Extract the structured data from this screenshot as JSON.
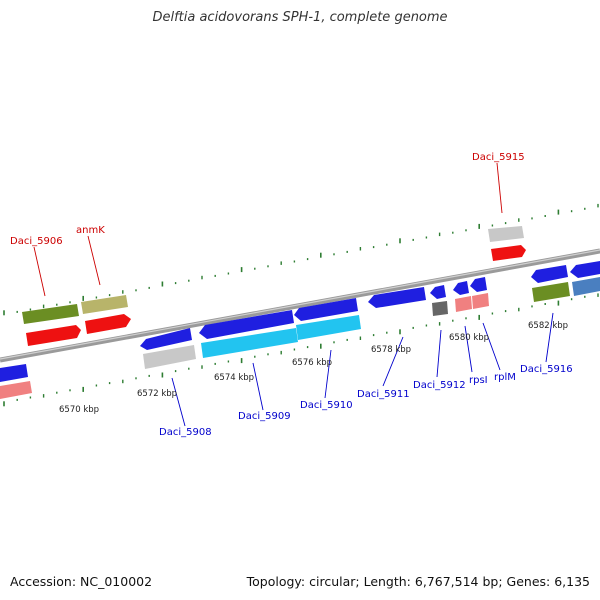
{
  "title": "Delftia acidovorans SPH-1, complete genome",
  "footer": {
    "accession": "Accession: NC_010002",
    "summary": "Topology: circular; Length: 6,767,514 bp; Genes: 6,135"
  },
  "ticks": [
    {
      "label": "6570 kbp"
    },
    {
      "label": "6572 kbp"
    },
    {
      "label": "6574 kbp"
    },
    {
      "label": "6576 kbp"
    },
    {
      "label": "6578 kbp"
    },
    {
      "label": "6580 kbp"
    },
    {
      "label": "6582 kbp"
    }
  ],
  "gene_labels": [
    {
      "text": "Daci_5906",
      "strand": "forward"
    },
    {
      "text": "anmK",
      "strand": "forward"
    },
    {
      "text": "Daci_5915",
      "strand": "forward"
    },
    {
      "text": "Daci_5908",
      "strand": "reverse"
    },
    {
      "text": "Daci_5909",
      "strand": "reverse"
    },
    {
      "text": "Daci_5910",
      "strand": "reverse"
    },
    {
      "text": "Daci_5911",
      "strand": "reverse"
    },
    {
      "text": "Daci_5912",
      "strand": "reverse"
    },
    {
      "text": "rpsI",
      "strand": "reverse"
    },
    {
      "text": "rplM",
      "strand": "reverse"
    },
    {
      "text": "Daci_5916",
      "strand": "reverse"
    }
  ],
  "colors": {
    "backbone": "#8a8a8a",
    "forward_label": "#cc0000",
    "reverse_label": "#0000cc",
    "gene_blue": "#1f1fe0",
    "cds_red": "#ee1111",
    "cds_cyan": "#22c4f0",
    "cds_olive": "#6b8e23",
    "cds_khaki": "#b8b46a",
    "cds_grey": "#c8c8c8",
    "cds_pink": "#f08080",
    "cds_steel": "#4a7fc0",
    "cds_dark": "#666666",
    "tick_green": "#2e7d32"
  }
}
